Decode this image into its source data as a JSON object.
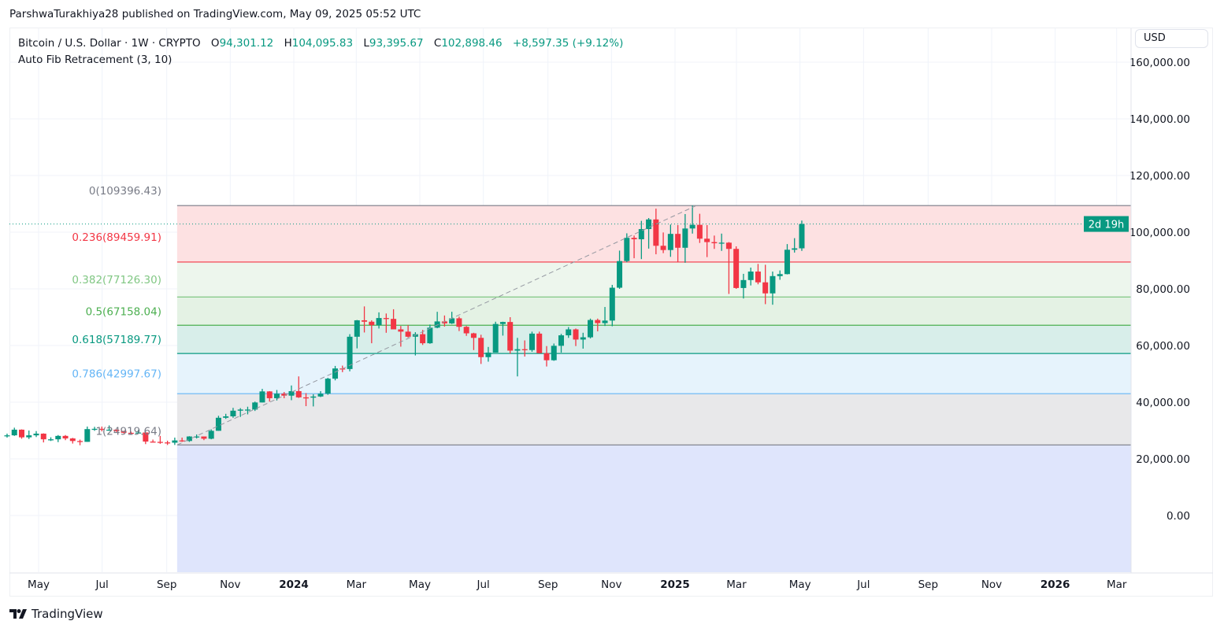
{
  "publisher_line": "ParshwaTurakhiya28 published on TradingView.com, May 09, 2025 05:52 UTC",
  "legend": {
    "symbol": "Bitcoin / U.S. Dollar · 1W · CRYPTO",
    "open_label": "O",
    "open": "94,301.12",
    "high_label": "H",
    "high": "104,095.83",
    "low_label": "L",
    "low": "93,395.67",
    "close_label": "C",
    "close": "102,898.46",
    "change": "+8,597.35 (+9.12%)",
    "indicator": "Auto Fib Retracement (3, 10)"
  },
  "currency_button": "USD",
  "countdown_label": "2d 19h",
  "footer_brand": "TradingView",
  "colors": {
    "up": "#089981",
    "down": "#f23645",
    "price_line": "#089981"
  },
  "chart_data": {
    "type": "candlestick",
    "interval": "1W",
    "ylim": [
      -19000,
      170000
    ],
    "y_ticks": [
      0,
      20000,
      40000,
      60000,
      80000,
      100000,
      120000,
      140000,
      160000
    ],
    "y_tick_labels": [
      "0.00",
      "20,000.00",
      "40,000.00",
      "60,000.00",
      "80,000.00",
      "100,000.00",
      "120,000.00",
      "140,000.00",
      "160,000.00"
    ],
    "x_range": [
      "2023-03-27",
      "2026-03-30"
    ],
    "x_ticks": [
      {
        "date": "2023-05-01",
        "label": "May",
        "bold": false
      },
      {
        "date": "2023-07-01",
        "label": "Jul",
        "bold": false
      },
      {
        "date": "2023-09-01",
        "label": "Sep",
        "bold": false
      },
      {
        "date": "2023-11-01",
        "label": "Nov",
        "bold": false
      },
      {
        "date": "2024-01-01",
        "label": "2024",
        "bold": true
      },
      {
        "date": "2024-03-01",
        "label": "Mar",
        "bold": false
      },
      {
        "date": "2024-05-01",
        "label": "May",
        "bold": false
      },
      {
        "date": "2024-07-01",
        "label": "Jul",
        "bold": false
      },
      {
        "date": "2024-09-01",
        "label": "Sep",
        "bold": false
      },
      {
        "date": "2024-11-01",
        "label": "Nov",
        "bold": false
      },
      {
        "date": "2025-01-01",
        "label": "2025",
        "bold": true
      },
      {
        "date": "2025-03-01",
        "label": "Mar",
        "bold": false
      },
      {
        "date": "2025-05-01",
        "label": "May",
        "bold": false
      },
      {
        "date": "2025-07-01",
        "label": "Jul",
        "bold": false
      },
      {
        "date": "2025-09-01",
        "label": "Sep",
        "bold": false
      },
      {
        "date": "2025-11-01",
        "label": "Nov",
        "bold": false
      },
      {
        "date": "2026-01-01",
        "label": "2026",
        "bold": true
      },
      {
        "date": "2026-03-01",
        "label": "Mar",
        "bold": false
      }
    ],
    "current_price": 102898.46,
    "fib": {
      "start_date": "2023-09-11",
      "end_date": "2025-01-20",
      "levels": [
        {
          "ratio": "0",
          "price": 109396.43,
          "label": "0(109396.43)",
          "line": "#787b86",
          "fill": "#fde1e2",
          "text": "#787b86"
        },
        {
          "ratio": "0.236",
          "price": 89459.91,
          "label": "0.236(89459.91)",
          "line": "#f23645",
          "fill": "#edf6ed",
          "text": "#f23645"
        },
        {
          "ratio": "0.382",
          "price": 77126.3,
          "label": "0.382(77126.30)",
          "line": "#81c784",
          "fill": "#e4f2e4",
          "text": "#81c784"
        },
        {
          "ratio": "0.5",
          "price": 67158.04,
          "label": "0.5(67158.04)",
          "line": "#4caf50",
          "fill": "#d8eeea",
          "text": "#4caf50"
        },
        {
          "ratio": "0.618",
          "price": 57189.77,
          "label": "0.618(57189.77)",
          "line": "#089981",
          "fill": "#e6f3fc",
          "text": "#089981"
        },
        {
          "ratio": "0.786",
          "price": 42997.67,
          "label": "0.786(42997.67)",
          "line": "#64b5f6",
          "fill": "#e8e8ea",
          "text": "#64b5f6"
        },
        {
          "ratio": "1",
          "price": 24919.64,
          "label": "1(24919.64)",
          "line": "#787b86",
          "fill": "#dfe5fc",
          "text": "#787b86"
        }
      ]
    },
    "candles": [
      [
        "2023-04-03",
        28200,
        28900,
        27500,
        28300
      ],
      [
        "2023-04-10",
        28300,
        31000,
        28100,
        30300
      ],
      [
        "2023-04-17",
        30300,
        30400,
        27100,
        27600
      ],
      [
        "2023-04-24",
        27600,
        30000,
        27000,
        28300
      ],
      [
        "2023-05-01",
        28300,
        29800,
        27700,
        28900
      ],
      [
        "2023-05-08",
        28900,
        29000,
        25800,
        26900
      ],
      [
        "2023-05-15",
        26900,
        27600,
        26300,
        26900
      ],
      [
        "2023-05-22",
        26900,
        28400,
        25900,
        28100
      ],
      [
        "2023-05-29",
        28100,
        28400,
        26600,
        27200
      ],
      [
        "2023-06-05",
        27200,
        27400,
        25400,
        26300
      ],
      [
        "2023-06-12",
        26300,
        26800,
        24800,
        26000
      ],
      [
        "2023-06-19",
        26000,
        31400,
        26000,
        30500
      ],
      [
        "2023-06-26",
        30500,
        31300,
        29900,
        30600
      ],
      [
        "2023-07-03",
        30600,
        31400,
        29700,
        30300
      ],
      [
        "2023-07-10",
        30300,
        31800,
        29900,
        30300
      ],
      [
        "2023-07-17",
        30300,
        30400,
        29500,
        29800
      ],
      [
        "2023-07-24",
        29800,
        29900,
        29000,
        29200
      ],
      [
        "2023-07-31",
        29200,
        29600,
        28600,
        29000
      ],
      [
        "2023-08-07",
        29000,
        30200,
        29000,
        29300
      ],
      [
        "2023-08-14",
        29300,
        29500,
        25200,
        26100
      ],
      [
        "2023-08-21",
        26100,
        26800,
        25800,
        26000
      ],
      [
        "2023-08-28",
        26000,
        28100,
        25300,
        25800
      ],
      [
        "2023-09-04",
        25800,
        26400,
        24900,
        25700
      ],
      [
        "2023-09-11",
        25700,
        27500,
        24900,
        26500
      ],
      [
        "2023-09-18",
        26500,
        27500,
        26000,
        26300
      ],
      [
        "2023-09-25",
        26300,
        28000,
        26000,
        27900
      ],
      [
        "2023-10-02",
        27900,
        28600,
        27200,
        27900
      ],
      [
        "2023-10-09",
        27900,
        27900,
        26600,
        27100
      ],
      [
        "2023-10-16",
        27100,
        30400,
        26900,
        29900
      ],
      [
        "2023-10-23",
        29900,
        35200,
        29900,
        34500
      ],
      [
        "2023-10-30",
        34500,
        35900,
        34100,
        35000
      ],
      [
        "2023-11-06",
        35000,
        38000,
        34500,
        37000
      ],
      [
        "2023-11-13",
        37000,
        37900,
        34800,
        37400
      ],
      [
        "2023-11-20",
        37400,
        38400,
        35700,
        37400
      ],
      [
        "2023-11-27",
        37400,
        40200,
        36900,
        39900
      ],
      [
        "2023-12-04",
        39900,
        44700,
        39900,
        43800
      ],
      [
        "2023-12-11",
        43800,
        43900,
        40200,
        41400
      ],
      [
        "2023-12-18",
        41400,
        44300,
        40600,
        43000
      ],
      [
        "2023-12-25",
        43000,
        43600,
        41400,
        42300
      ],
      [
        "2024-01-01",
        42300,
        45900,
        40700,
        43900
      ],
      [
        "2024-01-08",
        43900,
        49100,
        41500,
        41700
      ],
      [
        "2024-01-15",
        41700,
        43200,
        38600,
        41600
      ],
      [
        "2024-01-22",
        41600,
        42800,
        38500,
        42000
      ],
      [
        "2024-01-29",
        42000,
        43900,
        41800,
        43000
      ],
      [
        "2024-02-05",
        43000,
        48600,
        42600,
        48300
      ],
      [
        "2024-02-12",
        48300,
        52800,
        47700,
        51900
      ],
      [
        "2024-02-19",
        51900,
        52900,
        50600,
        51700
      ],
      [
        "2024-02-26",
        51700,
        64000,
        50900,
        63100
      ],
      [
        "2024-03-04",
        63100,
        69000,
        59000,
        68900
      ],
      [
        "2024-03-11",
        68900,
        73800,
        64600,
        68400
      ],
      [
        "2024-03-18",
        68400,
        68900,
        60800,
        67200
      ],
      [
        "2024-03-25",
        67200,
        71700,
        66000,
        69700
      ],
      [
        "2024-04-01",
        69700,
        71300,
        64500,
        69400
      ],
      [
        "2024-04-08",
        69400,
        72800,
        66000,
        65700
      ],
      [
        "2024-04-15",
        65700,
        66900,
        59600,
        64900
      ],
      [
        "2024-04-22",
        64900,
        67200,
        62800,
        63100
      ],
      [
        "2024-04-29",
        63100,
        64700,
        56500,
        64000
      ],
      [
        "2024-05-06",
        64000,
        65500,
        60200,
        60800
      ],
      [
        "2024-05-13",
        60800,
        67400,
        60600,
        66300
      ],
      [
        "2024-05-20",
        66300,
        71900,
        66100,
        68500
      ],
      [
        "2024-05-27",
        68500,
        70600,
        66700,
        67800
      ],
      [
        "2024-06-03",
        67800,
        71900,
        67600,
        69600
      ],
      [
        "2024-06-10",
        69600,
        70200,
        65100,
        66600
      ],
      [
        "2024-06-17",
        66600,
        66900,
        63400,
        64300
      ],
      [
        "2024-06-24",
        64300,
        64500,
        58400,
        62700
      ],
      [
        "2024-07-01",
        62700,
        63800,
        53500,
        55900
      ],
      [
        "2024-07-08",
        55900,
        59500,
        54300,
        57500
      ],
      [
        "2024-07-15",
        57500,
        68400,
        57500,
        67600
      ],
      [
        "2024-07-22",
        67600,
        68400,
        63500,
        68300
      ],
      [
        "2024-07-29",
        68300,
        70000,
        57100,
        58200
      ],
      [
        "2024-08-05",
        58200,
        62700,
        49100,
        58700
      ],
      [
        "2024-08-12",
        58700,
        61800,
        56100,
        58400
      ],
      [
        "2024-08-19",
        58400,
        64900,
        57800,
        64200
      ],
      [
        "2024-08-26",
        64200,
        64900,
        57200,
        57300
      ],
      [
        "2024-09-02",
        57300,
        59800,
        52600,
        54800
      ],
      [
        "2024-09-09",
        54800,
        60700,
        54600,
        59900
      ],
      [
        "2024-09-16",
        59900,
        64100,
        57500,
        63600
      ],
      [
        "2024-09-23",
        63600,
        66500,
        62700,
        65700
      ],
      [
        "2024-09-30",
        65700,
        66000,
        59800,
        62100
      ],
      [
        "2024-10-07",
        62100,
        64500,
        58900,
        62900
      ],
      [
        "2024-10-14",
        62900,
        69500,
        62500,
        69000
      ],
      [
        "2024-10-21",
        69000,
        69500,
        65000,
        67900
      ],
      [
        "2024-10-28",
        67900,
        73600,
        66900,
        68800
      ],
      [
        "2024-11-04",
        68800,
        81400,
        66800,
        80400
      ],
      [
        "2024-11-11",
        80400,
        93500,
        80000,
        89800
      ],
      [
        "2024-11-18",
        89800,
        99600,
        89400,
        98000
      ],
      [
        "2024-11-25",
        98000,
        98800,
        90800,
        97500
      ],
      [
        "2024-12-02",
        97500,
        104000,
        90500,
        101100
      ],
      [
        "2024-12-09",
        101100,
        105000,
        94200,
        104500
      ],
      [
        "2024-12-16",
        104500,
        108300,
        92200,
        95200
      ],
      [
        "2024-12-23",
        95200,
        99900,
        92600,
        93700
      ],
      [
        "2024-12-30",
        93700,
        102700,
        91300,
        99400
      ],
      [
        "2025-01-06",
        99400,
        102500,
        89300,
        94500
      ],
      [
        "2025-01-13",
        94500,
        106400,
        89200,
        101300
      ],
      [
        "2025-01-20",
        101300,
        109400,
        99500,
        102600
      ],
      [
        "2025-01-27",
        102600,
        106500,
        96200,
        97700
      ],
      [
        "2025-02-03",
        97700,
        102500,
        91200,
        96500
      ],
      [
        "2025-02-10",
        96500,
        98800,
        94100,
        96100
      ],
      [
        "2025-02-17",
        96100,
        99500,
        93400,
        96300
      ],
      [
        "2025-02-24",
        96300,
        96500,
        78200,
        94100
      ],
      [
        "2025-03-03",
        94100,
        95000,
        80000,
        80300
      ],
      [
        "2025-03-10",
        80300,
        85300,
        76600,
        83100
      ],
      [
        "2025-03-17",
        83100,
        87500,
        81200,
        86100
      ],
      [
        "2025-03-24",
        86100,
        88800,
        81600,
        82300
      ],
      [
        "2025-03-31",
        82300,
        88500,
        74600,
        78400
      ],
      [
        "2025-04-07",
        78400,
        86100,
        74400,
        84500
      ],
      [
        "2025-04-14",
        84500,
        86500,
        83200,
        85200
      ],
      [
        "2025-04-21",
        85200,
        95800,
        85100,
        93800
      ],
      [
        "2025-04-28",
        93800,
        97900,
        92800,
        94300
      ],
      [
        "2025-05-05",
        94301.12,
        104095.83,
        93395.67,
        102898.46
      ]
    ]
  }
}
